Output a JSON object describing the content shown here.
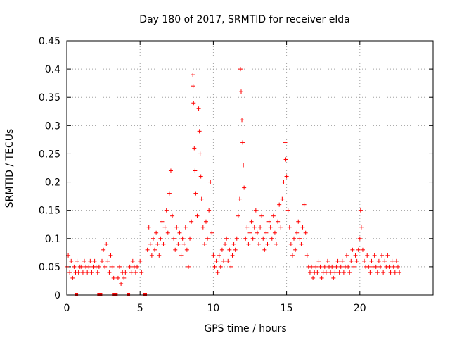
{
  "chart_data": {
    "type": "scatter",
    "title": "Day 180 of 2017, SRMTID for receiver elda",
    "xlabel": "GPS time / hours",
    "ylabel": "SRMTID / TECUs",
    "xlim": [
      0,
      25
    ],
    "ylim": [
      0,
      0.45
    ],
    "xticks": [
      0,
      5,
      10,
      15,
      20
    ],
    "xtick_labels": [
      "0",
      "5",
      "10",
      "15",
      "20"
    ],
    "yticks": [
      0,
      0.05,
      0.1,
      0.15,
      0.2,
      0.25,
      0.3,
      0.35,
      0.4,
      0.45
    ],
    "ytick_labels": [
      "0",
      "0.05",
      "0.1",
      "0.15",
      "0.2",
      "0.25",
      "0.3",
      "0.35",
      "0.4",
      "0.45"
    ],
    "grid": true,
    "marker": "+",
    "color": "#ff0000",
    "series": [
      {
        "name": "SRMTID",
        "points": [
          [
            0.0,
            0.05
          ],
          [
            0.1,
            0.07
          ],
          [
            0.2,
            0.04
          ],
          [
            0.3,
            0.06
          ],
          [
            0.4,
            0.03
          ],
          [
            0.5,
            0.05
          ],
          [
            0.6,
            0.04
          ],
          [
            0.7,
            0.06
          ],
          [
            0.8,
            0.04
          ],
          [
            0.9,
            0.05
          ],
          [
            1.0,
            0.05
          ],
          [
            1.1,
            0.04
          ],
          [
            1.2,
            0.06
          ],
          [
            1.3,
            0.05
          ],
          [
            1.4,
            0.04
          ],
          [
            1.5,
            0.05
          ],
          [
            1.6,
            0.06
          ],
          [
            1.7,
            0.04
          ],
          [
            1.8,
            0.05
          ],
          [
            1.9,
            0.06
          ],
          [
            2.0,
            0.05
          ],
          [
            2.1,
            0.04
          ],
          [
            2.2,
            0.05
          ],
          [
            2.4,
            0.06
          ],
          [
            2.5,
            0.08
          ],
          [
            2.6,
            0.05
          ],
          [
            2.7,
            0.09
          ],
          [
            2.8,
            0.06
          ],
          [
            2.9,
            0.04
          ],
          [
            3.0,
            0.07
          ],
          [
            3.1,
            0.05
          ],
          [
            3.2,
            0.03
          ],
          [
            3.5,
            0.03
          ],
          [
            3.6,
            0.05
          ],
          [
            3.7,
            0.02
          ],
          [
            3.8,
            0.04
          ],
          [
            3.9,
            0.03
          ],
          [
            4.0,
            0.04
          ],
          [
            4.3,
            0.05
          ],
          [
            4.4,
            0.04
          ],
          [
            4.5,
            0.06
          ],
          [
            4.6,
            0.05
          ],
          [
            4.7,
            0.04
          ],
          [
            4.8,
            0.05
          ],
          [
            5.0,
            0.06
          ],
          [
            5.1,
            0.04
          ],
          [
            5.5,
            0.08
          ],
          [
            5.6,
            0.12
          ],
          [
            5.7,
            0.09
          ],
          [
            5.8,
            0.07
          ],
          [
            5.9,
            0.1
          ],
          [
            6.0,
            0.08
          ],
          [
            6.1,
            0.11
          ],
          [
            6.2,
            0.09
          ],
          [
            6.3,
            0.07
          ],
          [
            6.4,
            0.1
          ],
          [
            6.5,
            0.13
          ],
          [
            6.6,
            0.09
          ],
          [
            6.7,
            0.12
          ],
          [
            6.8,
            0.15
          ],
          [
            6.9,
            0.11
          ],
          [
            7.0,
            0.18
          ],
          [
            7.1,
            0.22
          ],
          [
            7.2,
            0.14
          ],
          [
            7.3,
            0.1
          ],
          [
            7.4,
            0.08
          ],
          [
            7.5,
            0.12
          ],
          [
            7.6,
            0.09
          ],
          [
            7.7,
            0.11
          ],
          [
            7.8,
            0.07
          ],
          [
            7.9,
            0.1
          ],
          [
            8.0,
            0.09
          ],
          [
            8.1,
            0.12
          ],
          [
            8.2,
            0.08
          ],
          [
            8.3,
            0.05
          ],
          [
            8.4,
            0.1
          ],
          [
            8.5,
            0.13
          ],
          [
            8.6,
            0.39
          ],
          [
            8.62,
            0.37
          ],
          [
            8.65,
            0.34
          ],
          [
            8.7,
            0.26
          ],
          [
            8.75,
            0.22
          ],
          [
            8.8,
            0.18
          ],
          [
            8.9,
            0.14
          ],
          [
            9.0,
            0.33
          ],
          [
            9.05,
            0.29
          ],
          [
            9.1,
            0.25
          ],
          [
            9.15,
            0.21
          ],
          [
            9.2,
            0.17
          ],
          [
            9.3,
            0.12
          ],
          [
            9.4,
            0.09
          ],
          [
            9.5,
            0.13
          ],
          [
            9.6,
            0.1
          ],
          [
            9.7,
            0.15
          ],
          [
            9.8,
            0.2
          ],
          [
            9.9,
            0.11
          ],
          [
            10.0,
            0.07
          ],
          [
            10.1,
            0.05
          ],
          [
            10.2,
            0.06
          ],
          [
            10.3,
            0.04
          ],
          [
            10.4,
            0.07
          ],
          [
            10.5,
            0.05
          ],
          [
            10.6,
            0.08
          ],
          [
            10.7,
            0.06
          ],
          [
            10.8,
            0.09
          ],
          [
            10.9,
            0.1
          ],
          [
            11.0,
            0.06
          ],
          [
            11.1,
            0.08
          ],
          [
            11.2,
            0.05
          ],
          [
            11.3,
            0.07
          ],
          [
            11.4,
            0.09
          ],
          [
            11.5,
            0.08
          ],
          [
            11.6,
            0.1
          ],
          [
            11.7,
            0.14
          ],
          [
            11.8,
            0.17
          ],
          [
            11.85,
            0.4
          ],
          [
            11.9,
            0.36
          ],
          [
            11.95,
            0.31
          ],
          [
            12.0,
            0.27
          ],
          [
            12.05,
            0.23
          ],
          [
            12.1,
            0.19
          ],
          [
            12.2,
            0.1
          ],
          [
            12.3,
            0.12
          ],
          [
            12.4,
            0.09
          ],
          [
            12.5,
            0.11
          ],
          [
            12.6,
            0.13
          ],
          [
            12.7,
            0.1
          ],
          [
            12.8,
            0.12
          ],
          [
            12.9,
            0.15
          ],
          [
            13.0,
            0.11
          ],
          [
            13.1,
            0.09
          ],
          [
            13.2,
            0.12
          ],
          [
            13.3,
            0.14
          ],
          [
            13.4,
            0.1
          ],
          [
            13.5,
            0.08
          ],
          [
            13.6,
            0.11
          ],
          [
            13.7,
            0.09
          ],
          [
            13.8,
            0.13
          ],
          [
            13.9,
            0.12
          ],
          [
            14.0,
            0.1
          ],
          [
            14.1,
            0.14
          ],
          [
            14.2,
            0.11
          ],
          [
            14.3,
            0.09
          ],
          [
            14.4,
            0.13
          ],
          [
            14.5,
            0.16
          ],
          [
            14.6,
            0.12
          ],
          [
            14.7,
            0.17
          ],
          [
            14.8,
            0.2
          ],
          [
            14.9,
            0.27
          ],
          [
            14.95,
            0.24
          ],
          [
            15.0,
            0.21
          ],
          [
            15.1,
            0.15
          ],
          [
            15.2,
            0.12
          ],
          [
            15.3,
            0.09
          ],
          [
            15.4,
            0.07
          ],
          [
            15.5,
            0.1
          ],
          [
            15.6,
            0.08
          ],
          [
            15.7,
            0.11
          ],
          [
            15.8,
            0.13
          ],
          [
            15.9,
            0.1
          ],
          [
            16.0,
            0.09
          ],
          [
            16.1,
            0.12
          ],
          [
            16.2,
            0.16
          ],
          [
            16.3,
            0.11
          ],
          [
            16.4,
            0.07
          ],
          [
            16.5,
            0.05
          ],
          [
            16.6,
            0.04
          ],
          [
            16.7,
            0.05
          ],
          [
            16.8,
            0.03
          ],
          [
            16.9,
            0.04
          ],
          [
            17.0,
            0.05
          ],
          [
            17.1,
            0.04
          ],
          [
            17.2,
            0.06
          ],
          [
            17.3,
            0.05
          ],
          [
            17.4,
            0.03
          ],
          [
            17.5,
            0.04
          ],
          [
            17.6,
            0.05
          ],
          [
            17.7,
            0.04
          ],
          [
            17.8,
            0.06
          ],
          [
            17.9,
            0.05
          ],
          [
            18.0,
            0.04
          ],
          [
            18.1,
            0.05
          ],
          [
            18.2,
            0.03
          ],
          [
            18.3,
            0.04
          ],
          [
            18.4,
            0.05
          ],
          [
            18.5,
            0.06
          ],
          [
            18.6,
            0.04
          ],
          [
            18.7,
            0.05
          ],
          [
            18.8,
            0.06
          ],
          [
            18.9,
            0.04
          ],
          [
            19.0,
            0.05
          ],
          [
            19.1,
            0.07
          ],
          [
            19.2,
            0.05
          ],
          [
            19.3,
            0.04
          ],
          [
            19.4,
            0.06
          ],
          [
            19.5,
            0.08
          ],
          [
            19.6,
            0.05
          ],
          [
            19.7,
            0.07
          ],
          [
            19.8,
            0.06
          ],
          [
            19.9,
            0.08
          ],
          [
            20.0,
            0.1
          ],
          [
            20.05,
            0.15
          ],
          [
            20.1,
            0.12
          ],
          [
            20.2,
            0.08
          ],
          [
            20.3,
            0.06
          ],
          [
            20.4,
            0.05
          ],
          [
            20.5,
            0.07
          ],
          [
            20.6,
            0.05
          ],
          [
            20.7,
            0.04
          ],
          [
            20.8,
            0.06
          ],
          [
            20.9,
            0.05
          ],
          [
            21.0,
            0.07
          ],
          [
            21.1,
            0.05
          ],
          [
            21.2,
            0.04
          ],
          [
            21.3,
            0.06
          ],
          [
            21.4,
            0.05
          ],
          [
            21.5,
            0.07
          ],
          [
            21.6,
            0.04
          ],
          [
            21.7,
            0.06
          ],
          [
            21.8,
            0.05
          ],
          [
            21.9,
            0.07
          ],
          [
            22.0,
            0.05
          ],
          [
            22.1,
            0.04
          ],
          [
            22.2,
            0.06
          ],
          [
            22.3,
            0.05
          ],
          [
            22.4,
            0.04
          ],
          [
            22.5,
            0.06
          ],
          [
            22.6,
            0.05
          ],
          [
            22.7,
            0.04
          ]
        ]
      }
    ],
    "gap_markers": [
      0.65,
      2.2,
      2.3,
      3.25,
      3.35,
      4.2,
      5.35
    ]
  }
}
